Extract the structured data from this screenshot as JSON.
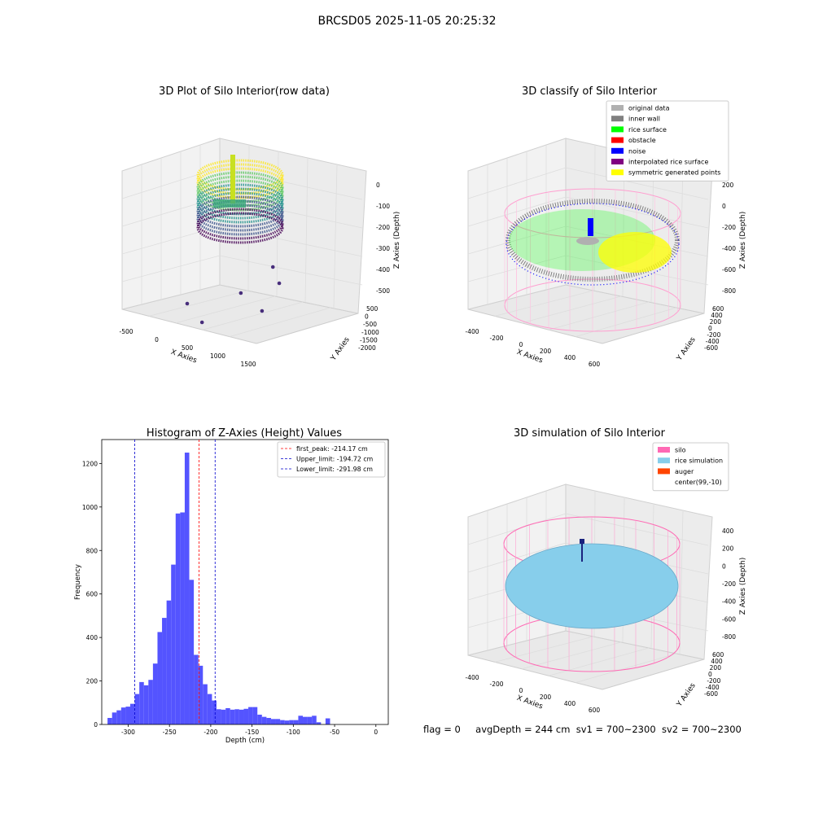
{
  "suptitle": "BRCSD05 2025-11-05 20:25:32",
  "footer": {
    "flag": "flag = 0",
    "avg": "avgDepth = 244 cm",
    "sv1": "sv1 = 700~2300",
    "sv2": "sv2 = 700~2300"
  },
  "chart_data": [
    {
      "type": "scatter",
      "title": "3D Plot of Silo Interior(row data)",
      "xlabel": "X Axies",
      "ylabel": "Y Axies",
      "zlabel": "Z Axies (Depth)",
      "x_ticks": [
        "-500",
        "0",
        "500",
        "1000",
        "1500"
      ],
      "y_ticks": [
        "500",
        "0",
        "-500",
        "-1000",
        "-1500",
        "-2000"
      ],
      "z_ticks": [
        "0",
        "-100",
        "-200",
        "-300",
        "-400",
        "-500"
      ],
      "colormap": "viridis",
      "outlier_points": [
        {
          "x": -40,
          "y": -1450,
          "z": -520
        },
        {
          "x": 250,
          "y": -1800,
          "z": -600
        },
        {
          "x": 900,
          "y": -1200,
          "z": -480
        },
        {
          "x": 1300,
          "y": -1500,
          "z": -560
        },
        {
          "x": 1550,
          "y": -700,
          "z": -470
        },
        {
          "x": 1400,
          "y": -200,
          "z": -420
        }
      ]
    },
    {
      "type": "scatter",
      "title": "3D classify of Silo Interior",
      "xlabel": "X Axies",
      "ylabel": "Y Axies",
      "zlabel": "Z Axies (Depth)",
      "x_ticks": [
        "-400",
        "-200",
        "0",
        "200",
        "400",
        "600"
      ],
      "y_ticks": [
        "600",
        "400",
        "200",
        "0",
        "-200",
        "-400",
        "-600"
      ],
      "z_ticks": [
        "200",
        "0",
        "-200",
        "-400",
        "-600",
        "-800"
      ],
      "legend_position": "top-right",
      "legend": [
        {
          "label": "original data",
          "color": "#b0b0b0"
        },
        {
          "label": "inner wall",
          "color": "#808080"
        },
        {
          "label": "rice surface",
          "color": "#00ff00"
        },
        {
          "label": "obstacle",
          "color": "#ff0000"
        },
        {
          "label": "noise",
          "color": "#0000ff"
        },
        {
          "label": "interpolated rice surface",
          "color": "#800080"
        },
        {
          "label": "symmetric generated points",
          "color": "#ffff00"
        }
      ]
    },
    {
      "type": "bar",
      "title": "Histogram of Z-Axies (Height) Values",
      "xlabel": "Depth (cm)",
      "ylabel": "Frequency",
      "xlim": [
        -332,
        15
      ],
      "ylim": [
        0,
        1310
      ],
      "x_ticks": [
        -300,
        -250,
        -200,
        -150,
        -100,
        -50,
        0
      ],
      "y_ticks": [
        0,
        200,
        400,
        600,
        800,
        1000,
        1200
      ],
      "bin_start": -325,
      "bin_width": 5.5,
      "bar_color": "#4b4bff",
      "values": [
        30,
        55,
        65,
        78,
        82,
        95,
        140,
        195,
        180,
        205,
        280,
        425,
        490,
        570,
        735,
        970,
        975,
        1250,
        665,
        320,
        270,
        185,
        140,
        110,
        70,
        68,
        75,
        68,
        70,
        68,
        72,
        80,
        80,
        45,
        35,
        30,
        25,
        25,
        20,
        18,
        20,
        20,
        40,
        35,
        35,
        40,
        10,
        0,
        28
      ],
      "vlines": [
        {
          "x": -214.17,
          "label": "first_peak: -214.17 cm",
          "color": "#ff0000"
        },
        {
          "x": -194.72,
          "label": "Upper_limit: -194.72 cm",
          "color": "#0000cc"
        },
        {
          "x": -291.98,
          "label": "Lower_limit: -291.98 cm",
          "color": "#0000cc"
        }
      ],
      "legend_position": "top-right"
    },
    {
      "type": "scatter",
      "title": "3D simulation of Silo Interior",
      "xlabel": "X Axies",
      "ylabel": "Y Axies",
      "zlabel": "Z Axies (Depth)",
      "x_ticks": [
        "-400",
        "-200",
        "0",
        "200",
        "400",
        "600"
      ],
      "y_ticks": [
        "600",
        "400",
        "200",
        "0",
        "-200",
        "-400",
        "-600"
      ],
      "z_ticks": [
        "400",
        "200",
        "0",
        "-200",
        "-400",
        "-600",
        "-800"
      ],
      "legend_position": "top-right",
      "legend": [
        {
          "label": "silo",
          "color": "#ff69b4"
        },
        {
          "label": "rice simulation",
          "color": "#87ceeb"
        },
        {
          "label": "auger",
          "color": "#ff4500"
        },
        {
          "label": "center(99,-10)",
          "color": "#ffffff"
        }
      ]
    }
  ]
}
